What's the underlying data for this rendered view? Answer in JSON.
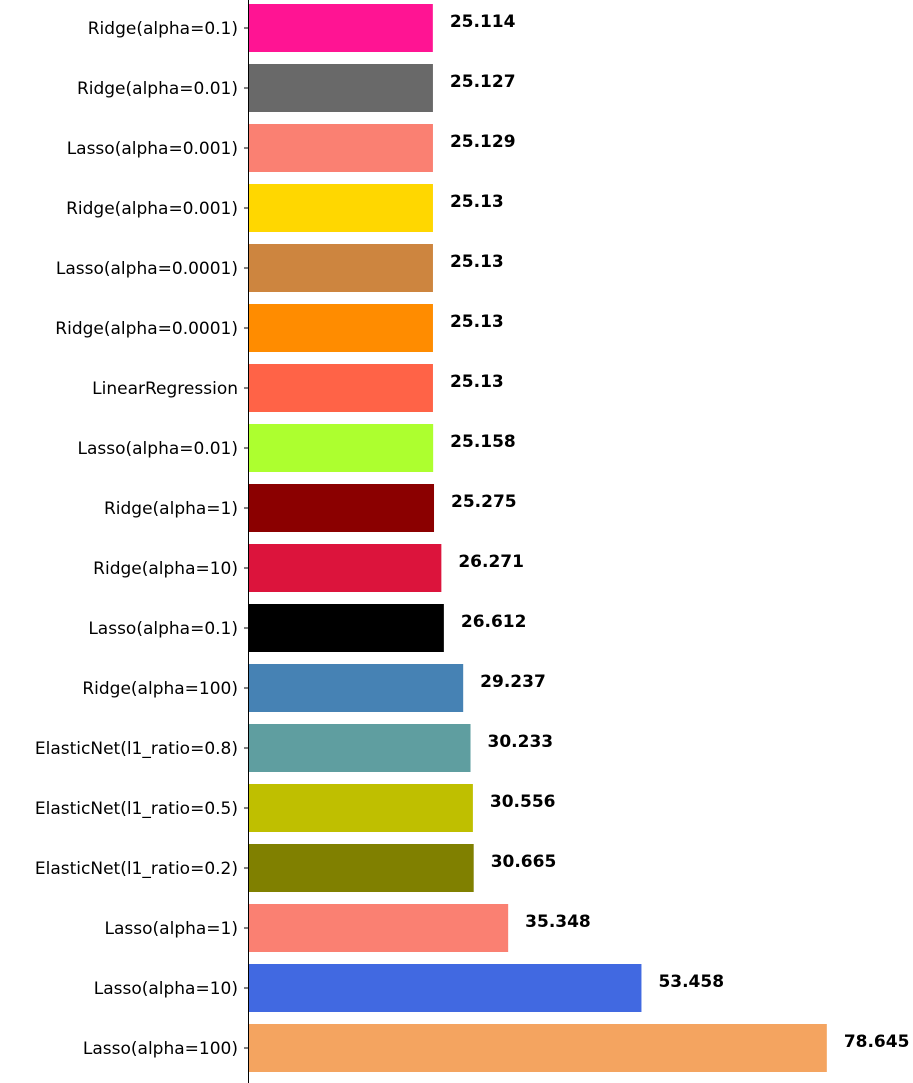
{
  "chart_data": {
    "type": "bar",
    "orientation": "horizontal",
    "title": "",
    "xlabel": "",
    "ylabel": "",
    "grid": false,
    "legend": "none",
    "categories": [
      "Ridge(alpha=0.1)",
      "Ridge(alpha=0.01)",
      "Lasso(alpha=0.001)",
      "Ridge(alpha=0.001)",
      "Lasso(alpha=0.0001)",
      "Ridge(alpha=0.0001)",
      "LinearRegression",
      "Lasso(alpha=0.01)",
      "Ridge(alpha=1)",
      "Ridge(alpha=10)",
      "Lasso(alpha=0.1)",
      "Ridge(alpha=100)",
      "ElasticNet(l1_ratio=0.8)",
      "ElasticNet(l1_ratio=0.5)",
      "ElasticNet(l1_ratio=0.2)",
      "Lasso(alpha=1)",
      "Lasso(alpha=10)",
      "Lasso(alpha=100)"
    ],
    "values": [
      25.114,
      25.127,
      25.129,
      25.13,
      25.13,
      25.13,
      25.13,
      25.158,
      25.275,
      26.271,
      26.612,
      29.237,
      30.233,
      30.556,
      30.665,
      35.348,
      53.458,
      78.645
    ],
    "value_labels": [
      "25.114",
      "25.127",
      "25.129",
      "25.13",
      "25.13",
      "25.13",
      "25.13",
      "25.158",
      "25.275",
      "26.271",
      "26.612",
      "29.237",
      "30.233",
      "30.556",
      "30.665",
      "35.348",
      "53.458",
      "78.645"
    ],
    "colors": [
      "#ff1493",
      "#696969",
      "#fa8072",
      "#ffd700",
      "#cd853f",
      "#ff8c00",
      "#ff6347",
      "#adff2f",
      "#8b0000",
      "#dc143c",
      "#000000",
      "#4682b4",
      "#5f9ea0",
      "#bfbf00",
      "#808000",
      "#fa8072",
      "#4169e1",
      "#f4a460"
    ],
    "xlim": [
      0,
      83
    ]
  }
}
